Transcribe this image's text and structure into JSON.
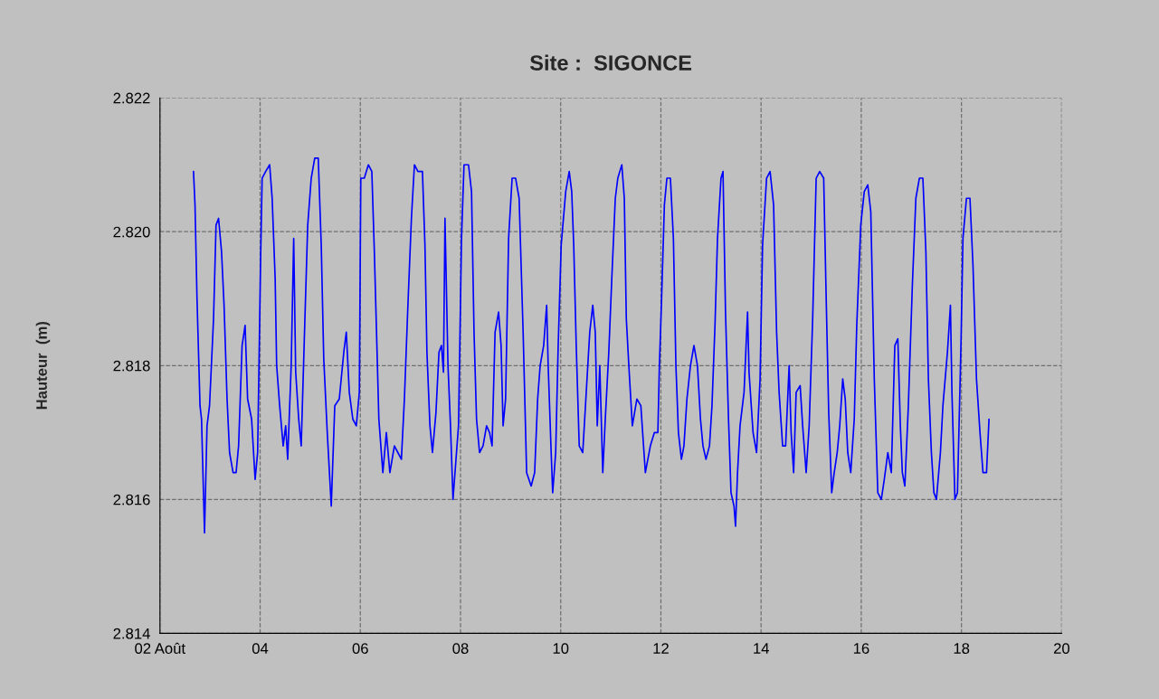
{
  "chart_data": {
    "type": "line",
    "title": "Site :  SIGONCE",
    "ylabel": "Hauteur  (m)",
    "xlim": [
      2,
      20
    ],
    "xticks": [
      {
        "value": 2,
        "label": "02 Août"
      },
      {
        "value": 4,
        "label": "04"
      },
      {
        "value": 6,
        "label": "06"
      },
      {
        "value": 8,
        "label": "08"
      },
      {
        "value": 10,
        "label": "10"
      },
      {
        "value": 12,
        "label": "12"
      },
      {
        "value": 14,
        "label": "14"
      },
      {
        "value": 16,
        "label": "16"
      },
      {
        "value": 18,
        "label": "18"
      },
      {
        "value": 20,
        "label": "20"
      }
    ],
    "ylim": [
      2.814,
      2.822
    ],
    "yticks": [
      2.814,
      2.816,
      2.818,
      {
        "value": 2.82,
        "label": "2.820"
      },
      2.822
    ],
    "grid": true,
    "line_style": "solid",
    "marker": "none",
    "series": [
      {
        "color": "#0000ff",
        "x": [
          2.67,
          2.7,
          2.74,
          2.8,
          2.83,
          2.89,
          2.94,
          2.99,
          3.07,
          3.12,
          3.17,
          3.23,
          3.28,
          3.34,
          3.39,
          3.46,
          3.52,
          3.57,
          3.64,
          3.7,
          3.75,
          3.83,
          3.9,
          3.95,
          4.01,
          4.04,
          4.11,
          4.19,
          4.24,
          4.3,
          4.33,
          4.39,
          4.46,
          4.51,
          4.55,
          4.62,
          4.67,
          4.71,
          4.77,
          4.82,
          4.89,
          4.95,
          5.02,
          5.09,
          5.16,
          5.22,
          5.27,
          5.34,
          5.42,
          5.49,
          5.58,
          5.67,
          5.72,
          5.78,
          5.85,
          5.92,
          5.98,
          6.01,
          6.08,
          6.16,
          6.23,
          6.28,
          6.32,
          6.37,
          6.45,
          6.52,
          6.59,
          6.68,
          6.75,
          6.82,
          6.88,
          6.95,
          7.02,
          7.08,
          7.15,
          7.24,
          7.29,
          7.33,
          7.39,
          7.44,
          7.51,
          7.57,
          7.62,
          7.66,
          7.69,
          7.75,
          7.8,
          7.85,
          7.91,
          7.96,
          8.02,
          8.07,
          8.16,
          8.22,
          8.27,
          8.32,
          8.38,
          8.45,
          8.52,
          8.58,
          8.63,
          8.69,
          8.76,
          8.81,
          8.85,
          8.9,
          8.96,
          9.03,
          9.1,
          9.17,
          9.25,
          9.32,
          9.41,
          9.48,
          9.54,
          9.59,
          9.66,
          9.72,
          9.75,
          9.81,
          9.84,
          9.9,
          9.95,
          10.01,
          10.1,
          10.17,
          10.22,
          10.26,
          10.31,
          10.37,
          10.44,
          10.51,
          10.58,
          10.64,
          10.69,
          10.73,
          10.78,
          10.84,
          10.89,
          10.96,
          11.02,
          11.09,
          11.14,
          11.22,
          11.27,
          11.31,
          11.36,
          11.43,
          11.52,
          11.6,
          11.69,
          11.74,
          11.79,
          11.87,
          11.94,
          11.97,
          12.01,
          12.07,
          12.12,
          12.19,
          12.25,
          12.3,
          12.35,
          12.41,
          12.46,
          12.52,
          12.59,
          12.66,
          12.73,
          12.79,
          12.84,
          12.9,
          12.97,
          13.02,
          13.08,
          13.13,
          13.2,
          13.24,
          13.29,
          13.35,
          13.4,
          13.46,
          13.49,
          13.53,
          13.58,
          13.66,
          13.73,
          13.76,
          13.84,
          13.91,
          13.98,
          14.03,
          14.11,
          14.18,
          14.25,
          14.31,
          14.36,
          14.43,
          14.49,
          14.56,
          14.6,
          14.65,
          14.7,
          14.78,
          14.83,
          14.9,
          14.96,
          15.03,
          15.1,
          15.17,
          15.25,
          15.3,
          15.35,
          15.41,
          15.46,
          15.52,
          15.57,
          15.63,
          15.68,
          15.73,
          15.79,
          15.86,
          15.91,
          15.99,
          16.06,
          16.13,
          16.19,
          16.26,
          16.33,
          16.4,
          16.46,
          16.53,
          16.6,
          16.67,
          16.73,
          16.78,
          16.82,
          16.87,
          16.94,
          17.02,
          17.09,
          17.16,
          17.23,
          17.29,
          17.34,
          17.4,
          17.45,
          17.5,
          17.58,
          17.63,
          17.72,
          17.78,
          17.81,
          17.87,
          17.92,
          17.99,
          18.03,
          18.1,
          18.17,
          18.23,
          18.3,
          18.37,
          18.43,
          18.5,
          18.55
        ],
        "values": [
          2.8209,
          2.8204,
          2.819,
          2.8174,
          2.8172,
          2.8155,
          2.8171,
          2.8174,
          2.8187,
          2.8201,
          2.8202,
          2.8197,
          2.8189,
          2.8175,
          2.8167,
          2.8164,
          2.8164,
          2.8168,
          2.8183,
          2.8186,
          2.8175,
          2.8172,
          2.8163,
          2.8167,
          2.8196,
          2.8208,
          2.8209,
          2.821,
          2.8205,
          2.8193,
          2.818,
          2.8174,
          2.8168,
          2.8171,
          2.8166,
          2.818,
          2.8199,
          2.8179,
          2.8172,
          2.8168,
          2.8186,
          2.8201,
          2.8208,
          2.8211,
          2.8211,
          2.8198,
          2.8181,
          2.817,
          2.8159,
          2.8174,
          2.8175,
          2.8182,
          2.8185,
          2.8176,
          2.8172,
          2.8171,
          2.8176,
          2.8208,
          2.8208,
          2.821,
          2.8209,
          2.8197,
          2.8186,
          2.8172,
          2.8164,
          2.817,
          2.8164,
          2.8168,
          2.8167,
          2.8166,
          2.8175,
          2.8189,
          2.8202,
          2.821,
          2.8209,
          2.8209,
          2.8198,
          2.8182,
          2.8171,
          2.8167,
          2.8173,
          2.8182,
          2.8183,
          2.8179,
          2.8202,
          2.818,
          2.8171,
          2.816,
          2.8166,
          2.8171,
          2.8199,
          2.821,
          2.821,
          2.8206,
          2.8185,
          2.8172,
          2.8167,
          2.8168,
          2.8171,
          2.817,
          2.8168,
          2.8185,
          2.8188,
          2.8183,
          2.8171,
          2.8175,
          2.8199,
          2.8208,
          2.8208,
          2.8205,
          2.8185,
          2.8164,
          2.8162,
          2.8164,
          2.8175,
          2.818,
          2.8183,
          2.8189,
          2.818,
          2.8167,
          2.8161,
          2.8167,
          2.8183,
          2.8198,
          2.8206,
          2.8209,
          2.8206,
          2.8198,
          2.8183,
          2.8168,
          2.8167,
          2.8176,
          2.8185,
          2.8189,
          2.8185,
          2.8171,
          2.818,
          2.8164,
          2.8172,
          2.8182,
          2.8193,
          2.8205,
          2.8208,
          2.821,
          2.8205,
          2.8187,
          2.818,
          2.8171,
          2.8175,
          2.8174,
          2.8164,
          2.8166,
          2.8168,
          2.817,
          2.817,
          2.818,
          2.8189,
          2.8204,
          2.8208,
          2.8208,
          2.8199,
          2.818,
          2.817,
          2.8166,
          2.8168,
          2.8175,
          2.818,
          2.8183,
          2.818,
          2.8172,
          2.8168,
          2.8166,
          2.8168,
          2.8174,
          2.8186,
          2.8199,
          2.8208,
          2.8209,
          2.8188,
          2.8172,
          2.8161,
          2.8159,
          2.8156,
          2.8164,
          2.8171,
          2.8176,
          2.8188,
          2.8179,
          2.817,
          2.8167,
          2.8178,
          2.8198,
          2.8208,
          2.8209,
          2.8204,
          2.8185,
          2.8176,
          2.8168,
          2.8168,
          2.818,
          2.817,
          2.8164,
          2.8176,
          2.8177,
          2.8171,
          2.8164,
          2.8171,
          2.8187,
          2.8208,
          2.8209,
          2.8208,
          2.819,
          2.8173,
          2.8161,
          2.8164,
          2.8167,
          2.8171,
          2.8178,
          2.8175,
          2.8167,
          2.8164,
          2.8172,
          2.8186,
          2.8201,
          2.8206,
          2.8207,
          2.8203,
          2.8178,
          2.8161,
          2.816,
          2.8163,
          2.8167,
          2.8164,
          2.8183,
          2.8184,
          2.8171,
          2.8164,
          2.8162,
          2.8174,
          2.8192,
          2.8205,
          2.8208,
          2.8208,
          2.8197,
          2.8178,
          2.8167,
          2.8161,
          2.816,
          2.8167,
          2.8174,
          2.8182,
          2.8189,
          2.8176,
          2.816,
          2.8161,
          2.8183,
          2.8199,
          2.8205,
          2.8205,
          2.8195,
          2.8178,
          2.817,
          2.8164,
          2.8164,
          2.8172
        ]
      }
    ]
  }
}
